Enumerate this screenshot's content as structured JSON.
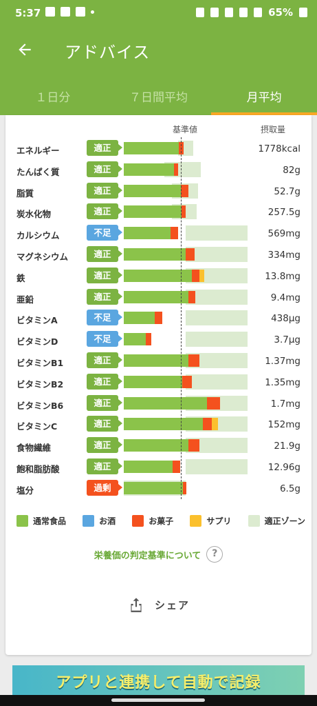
{
  "status": {
    "time": "5:37",
    "battery": "65%"
  },
  "appbar": {
    "title": "アドバイス"
  },
  "tabs": [
    {
      "label": "１日分",
      "active": false
    },
    {
      "label": "７日間平均",
      "active": false
    },
    {
      "label": "月平均",
      "active": true
    }
  ],
  "table": {
    "std_header": "基準値",
    "intake_header": "摂取量",
    "rows": [
      {
        "name": "エネルギー",
        "status": "適正",
        "level": "ok",
        "value": "1778kcal",
        "zone": [
          0.44,
          0.56
        ],
        "food": 0.445,
        "snack": 0.04,
        "supp": 0
      },
      {
        "name": "たんぱく質",
        "status": "適正",
        "level": "ok",
        "value": "82g",
        "zone": [
          0.33,
          0.62
        ],
        "food": 0.405,
        "snack": 0.035,
        "supp": 0
      },
      {
        "name": "脂質",
        "status": "適正",
        "level": "ok",
        "value": "52.7g",
        "zone": [
          0.39,
          0.6
        ],
        "food": 0.46,
        "snack": 0.06,
        "supp": 0
      },
      {
        "name": "炭水化物",
        "status": "適正",
        "level": "ok",
        "value": "257.5g",
        "zone": [
          0.39,
          0.59
        ],
        "food": 0.465,
        "snack": 0.035,
        "supp": 0
      },
      {
        "name": "カルシウム",
        "status": "不足",
        "level": "low",
        "value": "569mg",
        "zone": [
          0.5,
          1.0
        ],
        "food": 0.38,
        "snack": 0.06,
        "supp": 0
      },
      {
        "name": "マグネシウム",
        "status": "適正",
        "level": "ok",
        "value": "334mg",
        "zone": [
          0.5,
          1.0
        ],
        "food": 0.5,
        "snack": 0.07,
        "supp": 0
      },
      {
        "name": "鉄",
        "status": "適正",
        "level": "ok",
        "value": "13.8mg",
        "zone": [
          0.5,
          1.0
        ],
        "food": 0.55,
        "snack": 0.06,
        "supp": 0.04
      },
      {
        "name": "亜鉛",
        "status": "適正",
        "level": "ok",
        "value": "9.4mg",
        "zone": [
          0.5,
          1.0
        ],
        "food": 0.52,
        "snack": 0.06,
        "supp": 0
      },
      {
        "name": "ビタミンA",
        "status": "不足",
        "level": "low",
        "value": "438μg",
        "zone": [
          0.5,
          1.0
        ],
        "food": 0.25,
        "snack": 0.06,
        "supp": 0
      },
      {
        "name": "ビタミンD",
        "status": "不足",
        "level": "low",
        "value": "3.7μg",
        "zone": [
          0.5,
          1.0
        ],
        "food": 0.18,
        "snack": 0.04,
        "supp": 0
      },
      {
        "name": "ビタミンB1",
        "status": "適正",
        "level": "ok",
        "value": "1.37mg",
        "zone": [
          0.5,
          1.0
        ],
        "food": 0.52,
        "snack": 0.09,
        "supp": 0
      },
      {
        "name": "ビタミンB2",
        "status": "適正",
        "level": "ok",
        "value": "1.35mg",
        "zone": [
          0.5,
          1.0
        ],
        "food": 0.47,
        "snack": 0.08,
        "supp": 0
      },
      {
        "name": "ビタミンB6",
        "status": "適正",
        "level": "ok",
        "value": "1.7mg",
        "zone": [
          0.5,
          1.0
        ],
        "food": 0.67,
        "snack": 0.11,
        "supp": 0
      },
      {
        "name": "ビタミンC",
        "status": "適正",
        "level": "ok",
        "value": "152mg",
        "zone": [
          0.5,
          1.0
        ],
        "food": 0.64,
        "snack": 0.07,
        "supp": 0.05
      },
      {
        "name": "食物繊維",
        "status": "適正",
        "level": "ok",
        "value": "21.9g",
        "zone": [
          0.5,
          1.0
        ],
        "food": 0.52,
        "snack": 0.09,
        "supp": 0
      },
      {
        "name": "飽和脂肪酸",
        "status": "適正",
        "level": "ok",
        "value": "12.96g",
        "zone": [
          0.5,
          1.0
        ],
        "food": 0.395,
        "snack": 0.06,
        "supp": 0
      },
      {
        "name": "塩分",
        "status": "過剰",
        "level": "high",
        "value": "6.5g",
        "zone": [
          0,
          0.5
        ],
        "food": 0.48,
        "snack": 0.025,
        "supp": 0
      }
    ]
  },
  "legend": [
    {
      "label": "通常食品",
      "color": "#8bc34a"
    },
    {
      "label": "お酒",
      "color": "#5aa6e0"
    },
    {
      "label": "お菓子",
      "color": "#f4511e"
    },
    {
      "label": "サプリ",
      "color": "#fbc02d"
    },
    {
      "label": "適正ゾーン",
      "color": "#dcebd0"
    }
  ],
  "criteria": {
    "link_label": "栄養価の判定基準について",
    "help_icon_text": "?"
  },
  "share": {
    "label": "シェア"
  },
  "banner": {
    "text": "アプリと連携して自動で記録"
  }
}
